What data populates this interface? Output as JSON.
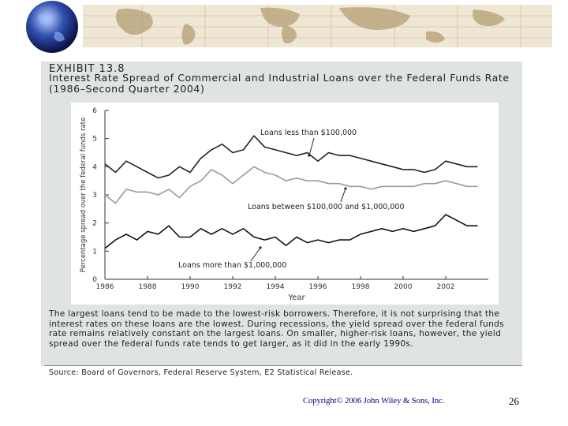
{
  "slide": {
    "exhibit": "EXHIBIT 13.8",
    "caption": "The largest loans tend to be made to the lowest-risk borrowers. Therefore, it is not surprising that the interest rates on these loans are the lowest. During recessions, the yield spread over the federal funds rate remains relatively constant on the largest loans. On smaller, higher-risk loans, however, the yield spread over the federal funds rate tends to get larger, as it did in the early 1990s.",
    "source": "Source: Board of Governors, Federal Reserve System, E2 Statistical Release.",
    "copyright": "Copyright© 2006 John Wiley & Sons, Inc.",
    "page": "26"
  },
  "chart_data": {
    "type": "line",
    "title": "Interest Rate Spread of Commercial and Industrial Loans over the Federal Funds Rate (1986–Second Quarter 2004)",
    "x_label": "Year",
    "y_label": "Percentage spread over the federal funds rate",
    "x": [
      1986,
      1986.5,
      1987,
      1987.5,
      1988,
      1988.5,
      1989,
      1989.5,
      1990,
      1990.5,
      1991,
      1991.5,
      1992,
      1992.5,
      1993,
      1993.5,
      1994,
      1994.5,
      1995,
      1995.5,
      1996,
      1996.5,
      1997,
      1997.5,
      1998,
      1998.5,
      1999,
      1999.5,
      2000,
      2000.5,
      2001,
      2001.5,
      2002,
      2002.5,
      2003,
      2003.5
    ],
    "series": [
      {
        "name": "Loans less than $100,000",
        "color": "#222222",
        "values": [
          4.1,
          3.8,
          4.2,
          4.0,
          3.8,
          3.6,
          3.7,
          4.0,
          3.8,
          4.3,
          4.6,
          4.8,
          4.5,
          4.6,
          5.1,
          4.7,
          4.6,
          4.5,
          4.4,
          4.5,
          4.2,
          4.5,
          4.4,
          4.4,
          4.3,
          4.2,
          4.1,
          4.0,
          3.9,
          3.9,
          3.8,
          3.9,
          4.2,
          4.1,
          4.0,
          4.0
        ]
      },
      {
        "name": "Loans between $100,000 and $1,000,000",
        "color": "#9a9a9a",
        "values": [
          3.0,
          2.7,
          3.2,
          3.1,
          3.1,
          3.0,
          3.2,
          2.9,
          3.3,
          3.5,
          3.9,
          3.7,
          3.4,
          3.7,
          4.0,
          3.8,
          3.7,
          3.5,
          3.6,
          3.5,
          3.5,
          3.4,
          3.4,
          3.3,
          3.3,
          3.2,
          3.3,
          3.3,
          3.3,
          3.3,
          3.4,
          3.4,
          3.5,
          3.4,
          3.3,
          3.3
        ]
      },
      {
        "name": "Loans more than $1,000,000",
        "color": "#111111",
        "values": [
          1.1,
          1.4,
          1.6,
          1.4,
          1.7,
          1.6,
          1.9,
          1.5,
          1.5,
          1.8,
          1.6,
          1.8,
          1.6,
          1.8,
          1.5,
          1.4,
          1.5,
          1.2,
          1.5,
          1.3,
          1.4,
          1.3,
          1.4,
          1.4,
          1.6,
          1.7,
          1.8,
          1.7,
          1.8,
          1.7,
          1.8,
          1.9,
          2.3,
          2.1,
          1.9,
          1.9
        ]
      }
    ],
    "xlim": [
      1986,
      2004
    ],
    "xticks": [
      1986,
      1988,
      1990,
      1992,
      1994,
      1996,
      1998,
      2000,
      2002
    ],
    "ylim": [
      0,
      6
    ],
    "yticks": [
      0,
      1,
      2,
      3,
      4,
      5,
      6
    ],
    "grid": false
  }
}
